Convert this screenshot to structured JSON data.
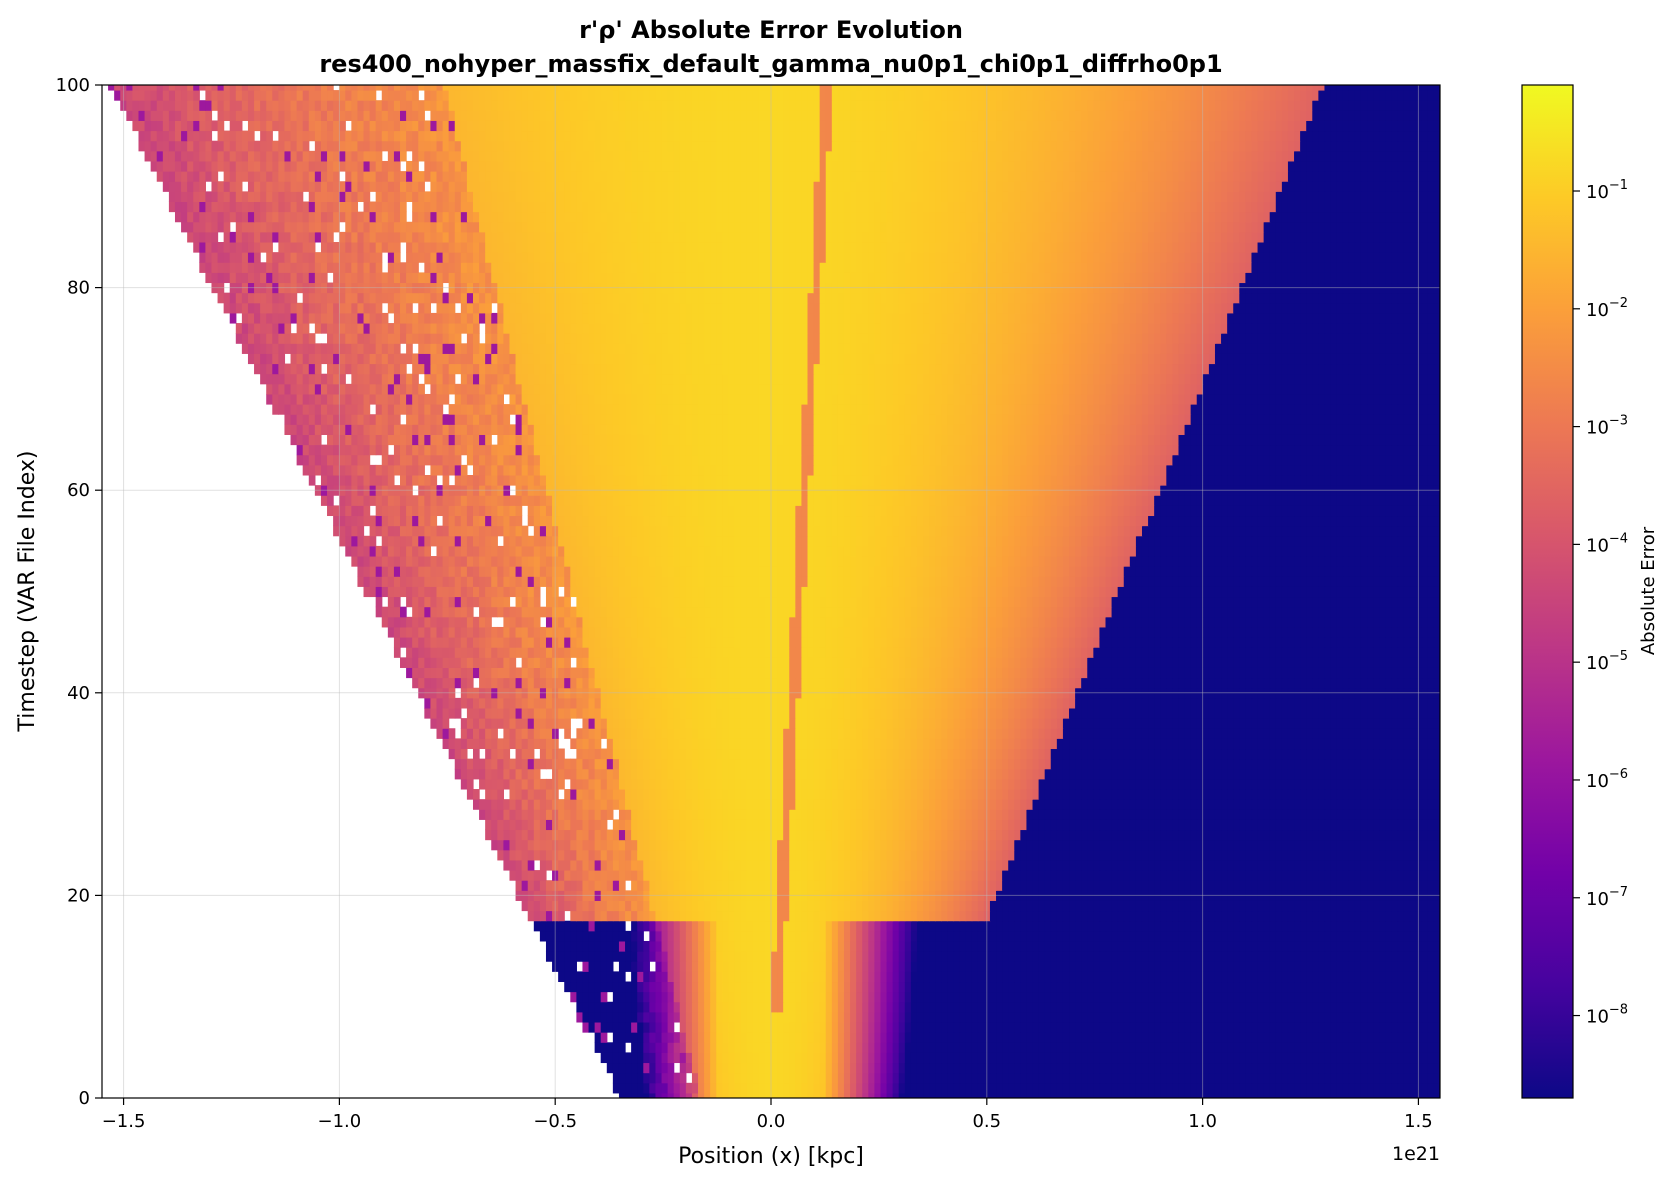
{
  "chart_data": {
    "type": "heatmap",
    "title": "r'ρ' Absolute Error Evolution",
    "subtitle": "res400_nohyper_massfix_default_gamma_nu0p1_chi0p1_diffrho0p1",
    "xlabel": "Position (x) [kpc]",
    "ylabel": "Timestep (VAR File Index)",
    "x_offset_label": "1e21",
    "xlim": [
      -1.55,
      1.55
    ],
    "ylim": [
      0,
      100
    ],
    "x_ticks": [
      {
        "value": -1.5,
        "label": "−1.5"
      },
      {
        "value": -1.0,
        "label": "−1.0"
      },
      {
        "value": -0.5,
        "label": "−0.5"
      },
      {
        "value": 0.0,
        "label": "0.0"
      },
      {
        "value": 0.5,
        "label": "0.5"
      },
      {
        "value": 1.0,
        "label": "1.0"
      },
      {
        "value": 1.5,
        "label": "1.5"
      }
    ],
    "y_ticks": [
      {
        "value": 0,
        "label": "0"
      },
      {
        "value": 20,
        "label": "20"
      },
      {
        "value": 40,
        "label": "40"
      },
      {
        "value": 60,
        "label": "60"
      },
      {
        "value": 80,
        "label": "80"
      },
      {
        "value": 100,
        "label": "100"
      }
    ],
    "grid": true,
    "colormap": "plasma",
    "color_scale": "log",
    "colorbar": {
      "label": "Absolute Error",
      "range_log10": [
        -8.7,
        -0.1
      ],
      "ticks": [
        {
          "exp": -1,
          "base": "10",
          "sup": "−1"
        },
        {
          "exp": -2,
          "base": "10",
          "sup": "−2"
        },
        {
          "exp": -3,
          "base": "10",
          "sup": "−3"
        },
        {
          "exp": -4,
          "base": "10",
          "sup": "−4"
        },
        {
          "exp": -5,
          "base": "10",
          "sup": "−5"
        },
        {
          "exp": -6,
          "base": "10",
          "sup": "−6"
        },
        {
          "exp": -7,
          "base": "10",
          "sup": "−7"
        },
        {
          "exp": -8,
          "base": "10",
          "sup": "−8"
        }
      ],
      "gradient_colors": [
        "#0d0887",
        "#46039f",
        "#7201a8",
        "#9c179e",
        "#bd3786",
        "#d8576b",
        "#ed7953",
        "#fb9f3a",
        "#fdca26",
        "#f0f921"
      ]
    },
    "regions": {
      "background_color": "#0d0887",
      "left_front": {
        "x_at_t0": -0.35,
        "x_at_t100": -1.53
      },
      "right_front": {
        "x_at_t0": 0.33,
        "x_at_t100": 1.28
      },
      "central_ridge_color": "#fdca26",
      "central_ridge_x_at_t100": 0.13
    }
  }
}
